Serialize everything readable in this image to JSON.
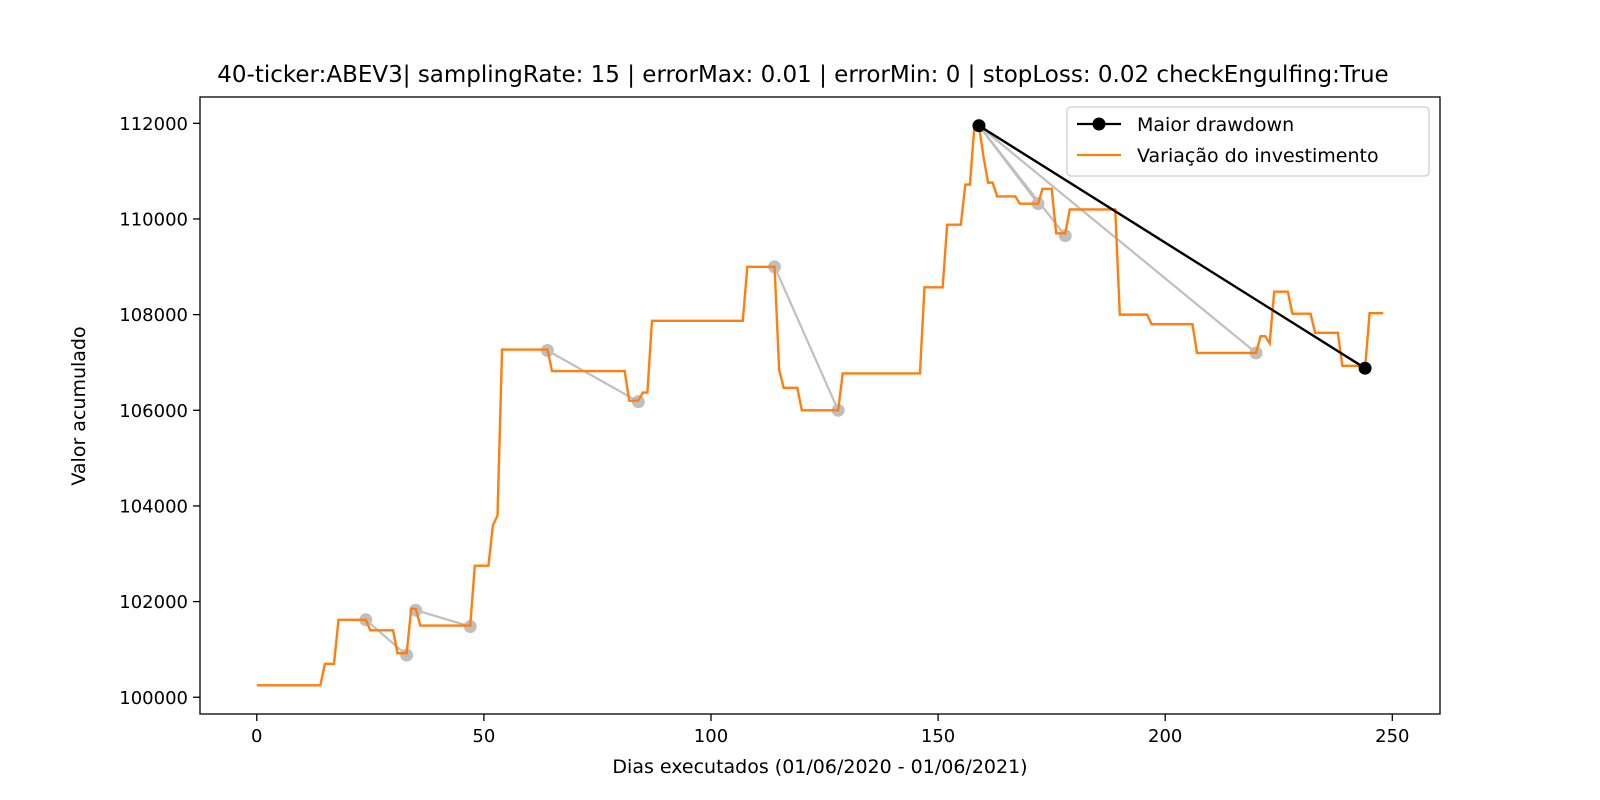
{
  "chart_data": {
    "type": "line",
    "title": "40-ticker:ABEV3| samplingRate: 15 | errorMax: 0.01 | errorMin: 0 | stopLoss: 0.02 checkEngulfing:True",
    "xlabel": "Dias executados (01/06/2020 - 01/06/2021)",
    "ylabel": "Valor acumulado",
    "xlim": [
      -12.5,
      260.5
    ],
    "ylim": [
      99650,
      112550
    ],
    "xticks": [
      0,
      50,
      100,
      150,
      200,
      250
    ],
    "yticks": [
      100000,
      102000,
      104000,
      106000,
      108000,
      110000,
      112000
    ],
    "grid": false,
    "legend": {
      "placement": "top-right"
    },
    "series": [
      {
        "name": "Variação do investimento",
        "color": "#ff7f0e",
        "style": "step-line",
        "points": [
          [
            0,
            100250
          ],
          [
            14,
            100250
          ],
          [
            15,
            100700
          ],
          [
            17,
            100700
          ],
          [
            18,
            101620
          ],
          [
            24,
            101620
          ],
          [
            25,
            101400
          ],
          [
            30,
            101400
          ],
          [
            31,
            100920
          ],
          [
            33,
            100920
          ],
          [
            34,
            101850
          ],
          [
            35,
            101850
          ],
          [
            36,
            101500
          ],
          [
            47,
            101500
          ],
          [
            48,
            102750
          ],
          [
            51,
            102750
          ],
          [
            52,
            103600
          ],
          [
            53,
            103800
          ],
          [
            54,
            107270
          ],
          [
            64,
            107270
          ],
          [
            65,
            106820
          ],
          [
            81,
            106820
          ],
          [
            82,
            106200
          ],
          [
            84,
            106200
          ],
          [
            85,
            106370
          ],
          [
            86,
            106370
          ],
          [
            87,
            107870
          ],
          [
            107,
            107870
          ],
          [
            108,
            109000
          ],
          [
            114,
            109000
          ],
          [
            115,
            106850
          ],
          [
            116,
            106470
          ],
          [
            119,
            106470
          ],
          [
            120,
            106000
          ],
          [
            128,
            106000
          ],
          [
            129,
            106770
          ],
          [
            146,
            106770
          ],
          [
            147,
            108570
          ],
          [
            151,
            108570
          ],
          [
            152,
            109880
          ],
          [
            155,
            109880
          ],
          [
            156,
            110720
          ],
          [
            157,
            110720
          ],
          [
            158,
            111950
          ],
          [
            159,
            111950
          ],
          [
            160,
            111300
          ],
          [
            161,
            110760
          ],
          [
            162,
            110760
          ],
          [
            163,
            110470
          ],
          [
            167,
            110470
          ],
          [
            168,
            110320
          ],
          [
            172,
            110320
          ],
          [
            173,
            110630
          ],
          [
            175,
            110630
          ],
          [
            176,
            109700
          ],
          [
            178,
            109700
          ],
          [
            179,
            110200
          ],
          [
            189,
            110200
          ],
          [
            190,
            108000
          ],
          [
            196,
            108000
          ],
          [
            197,
            107800
          ],
          [
            206,
            107800
          ],
          [
            207,
            107200
          ],
          [
            220,
            107200
          ],
          [
            221,
            107550
          ],
          [
            222,
            107550
          ],
          [
            223,
            107400
          ],
          [
            224,
            108480
          ],
          [
            227,
            108480
          ],
          [
            228,
            108020
          ],
          [
            232,
            108020
          ],
          [
            233,
            107620
          ],
          [
            238,
            107620
          ],
          [
            239,
            106930
          ],
          [
            243,
            106930
          ],
          [
            244,
            106880
          ],
          [
            245,
            108030
          ],
          [
            248,
            108030
          ]
        ]
      },
      {
        "name": "Maior drawdown",
        "color": "#000000",
        "style": "line-marker",
        "points": [
          [
            159,
            111950
          ],
          [
            244,
            106880
          ]
        ]
      }
    ],
    "drawdown_segments": {
      "color": "#bfbfbf",
      "segments": [
        [
          [
            24,
            101620
          ],
          [
            33,
            100880
          ]
        ],
        [
          [
            35,
            101820
          ],
          [
            47,
            101480
          ]
        ],
        [
          [
            64,
            107250
          ],
          [
            84,
            106180
          ]
        ],
        [
          [
            114,
            109000
          ],
          [
            128,
            106000
          ]
        ],
        [
          [
            159,
            111950
          ],
          [
            172,
            110320
          ]
        ],
        [
          [
            159,
            111950
          ],
          [
            178,
            109650
          ]
        ],
        [
          [
            159,
            111950
          ],
          [
            220,
            107200
          ]
        ]
      ]
    }
  }
}
